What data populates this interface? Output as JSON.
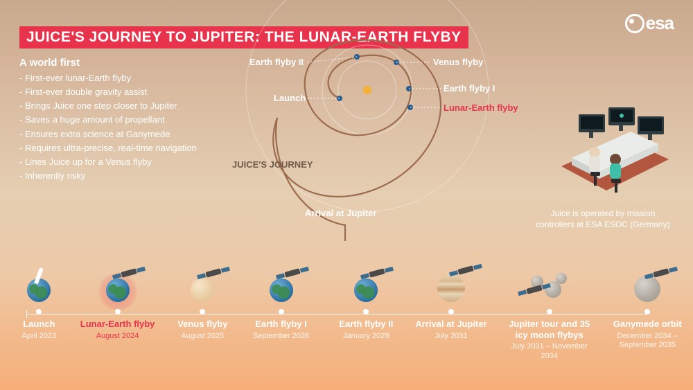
{
  "colors": {
    "accent": "#e7344c",
    "text": "#ffffff",
    "muted_text": "rgba(255,255,255,0.85)",
    "dark_label": "#6f5a4a",
    "background_top": "#c9a98e",
    "background_bottom": "#f6ae79"
  },
  "logo": {
    "text": "esa"
  },
  "title": "JUICE'S JOURNEY TO JUPITER: THE LUNAR-EARTH FLYBY",
  "worldfirst": {
    "heading": "A world first",
    "items": [
      "First-ever lunar-Earth flyby",
      "First-ever double gravity assist",
      "Brings Juice one step closer to Jupiter",
      "Saves a huge amount of propellant",
      "Ensures extra science at Ganymede",
      "Requires ultra-precise, real-time navigation",
      "Lines Juice up for a Venus flyby",
      "Inherently risky"
    ]
  },
  "diagram": {
    "journey_label": "JUICE'S JOURNEY",
    "labels": {
      "earth_flyby_2": "Earth flyby II",
      "venus_flyby": "Venus flyby",
      "launch": "Launch",
      "earth_flyby_1": "Earth flyby I",
      "lunar_earth_flyby": "Lunar-Earth flyby",
      "arrival_jupiter": "Arrival at Jupiter"
    },
    "sun_color": "#f2b23a",
    "orbit_stroke": "#9c6b4e",
    "orbit_guide_stroke": "rgba(255,255,255,0.45)",
    "planet_dot_color": "#2a5d8f"
  },
  "controlroom_caption": "Juice is operated by mission controllers at ESA ESOC (Germany)",
  "timeline": {
    "events": [
      {
        "label": "Launch",
        "date": "April 2023",
        "icon": "earth-rocket",
        "x_pct": 3
      },
      {
        "label": "Lunar-Earth flyby",
        "date": "August 2024",
        "icon": "earth-sc",
        "x_pct": 15,
        "highlight": true
      },
      {
        "label": "Venus flyby",
        "date": "August 2025",
        "icon": "venus-sc",
        "x_pct": 28
      },
      {
        "label": "Earth flyby I",
        "date": "September 2026",
        "icon": "earth-sc",
        "x_pct": 40
      },
      {
        "label": "Earth flyby II",
        "date": "January 2029",
        "icon": "earth-sc",
        "x_pct": 53
      },
      {
        "label": "Arrival at Jupiter",
        "date": "July 2031",
        "icon": "jupiter-sc",
        "x_pct": 66
      },
      {
        "label": "Jupiter tour and 35 icy moon flybys",
        "date": "July 2031 – November 2034",
        "icon": "moons-sc",
        "x_pct": 81
      },
      {
        "label": "Ganymede orbit",
        "date": "December 2034 – September 2035",
        "icon": "ganymede-sc",
        "x_pct": 96
      }
    ]
  }
}
